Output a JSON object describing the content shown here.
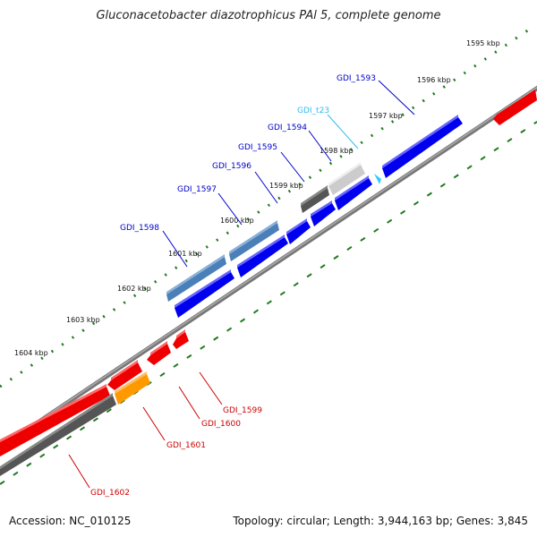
{
  "title": "Gluconacetobacter diazotrophicus PAl 5, complete genome",
  "footer": {
    "accession": "Accession: NC_010125",
    "summary": "Topology: circular; Length: 3,944,163 bp; Genes: 3,845"
  },
  "colors": {
    "forward": "#0000ee",
    "reverse": "#ee0000",
    "pseudo": "#4a7fb8",
    "trna": "#33ccff",
    "other_dark": "#555555",
    "other_light": "#cccccc",
    "orange": "#ff9900",
    "backbone": "#888888",
    "tick": "#207a20"
  },
  "ticks": [
    {
      "label": "1595 kbp"
    },
    {
      "label": "1596 kbp"
    },
    {
      "label": "1597 kbp"
    },
    {
      "label": "1598 kbp"
    },
    {
      "label": "1599 kbp"
    },
    {
      "label": "1600 kbp"
    },
    {
      "label": "1601 kbp"
    },
    {
      "label": "1602 kbp"
    },
    {
      "label": "1603 kbp"
    },
    {
      "label": "1604 kbp"
    }
  ],
  "gene_labels_forward": [
    {
      "id": "GDI_1593",
      "color": "#0000cc"
    },
    {
      "id": "GDI_t23",
      "color": "#33bbee"
    },
    {
      "id": "GDI_1594",
      "color": "#0000cc"
    },
    {
      "id": "GDI_1595",
      "color": "#0000cc"
    },
    {
      "id": "GDI_1596",
      "color": "#0000cc"
    },
    {
      "id": "GDI_1597",
      "color": "#0000cc"
    },
    {
      "id": "GDI_1598",
      "color": "#0000cc"
    }
  ],
  "gene_labels_reverse": [
    {
      "id": "GDI_1599",
      "color": "#cc0000"
    },
    {
      "id": "GDI_1600",
      "color": "#cc0000"
    },
    {
      "id": "GDI_1601",
      "color": "#cc0000"
    },
    {
      "id": "GDI_1602",
      "color": "#cc0000"
    }
  ]
}
